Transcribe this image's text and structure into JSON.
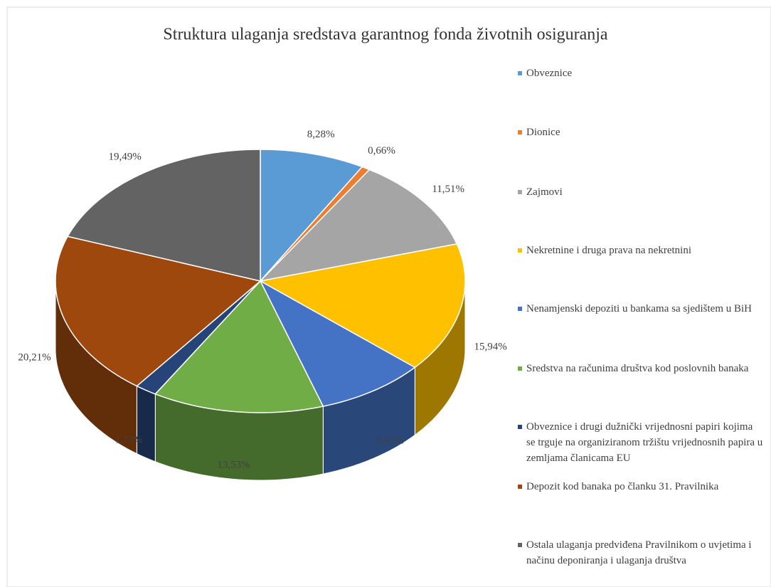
{
  "chart_data": {
    "type": "pie3d",
    "title": "Struktura ulaganja sredstava garantnog fonda životnih osiguranja",
    "categories": [
      "Obveznice",
      "Dionice",
      "Zajmovi",
      "Nekretnine i druga prava na nekretnini",
      "Nenamjenski depoziti u bankama sa sjedištem u BiH",
      "Sredstva na računima društva kod poslovnih banaka",
      "Obveznice i drugi dužnički vrijednosni papiri kojima se trguje na organiziranom tržištu vrijednosnih papira u zemljama članicama EU",
      "Depozit kod banaka po članku 31. Pravilnika",
      "Ostala ulaganja predviđena Pravilnikom o uvjetima i načinu deponiranja i ulaganja društva"
    ],
    "values": [
      8.28,
      0.66,
      11.51,
      15.94,
      8.65,
      13.53,
      1.73,
      20.21,
      19.49
    ],
    "value_labels": [
      "8,28%",
      "0,66%",
      "11,51%",
      "15,94%",
      "8,65%",
      "13,53%",
      "1,73%",
      "20,21%",
      "19,49%"
    ],
    "colors": [
      "#5b9bd5",
      "#ed7d31",
      "#a5a5a5",
      "#ffc000",
      "#4472c4",
      "#70ad47",
      "#264478",
      "#9e480e",
      "#636363"
    ],
    "legend": "right"
  }
}
